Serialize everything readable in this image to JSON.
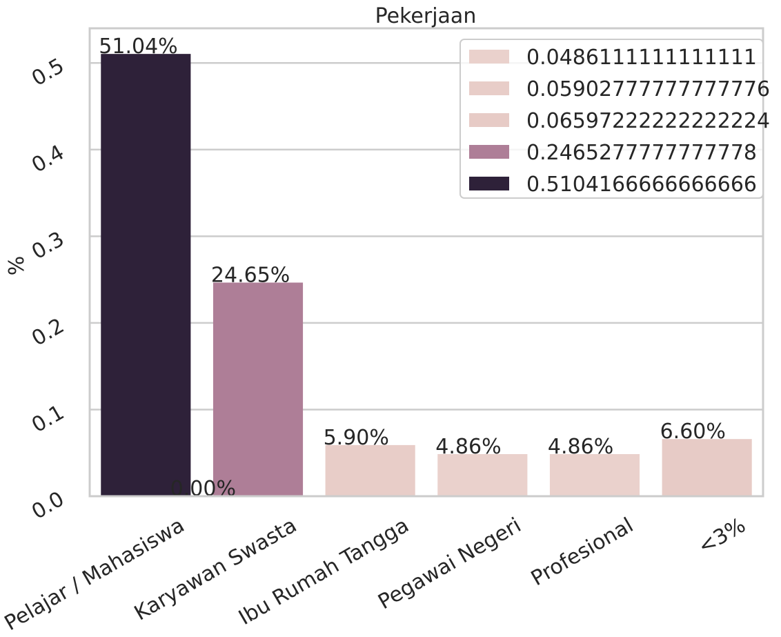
{
  "chart_data": {
    "type": "bar",
    "title": "Pekerjaan",
    "xlabel": "",
    "ylabel": "%",
    "ylim": [
      0,
      0.54
    ],
    "yticks": [
      0.0,
      0.1,
      0.2,
      0.3,
      0.4,
      0.5
    ],
    "ytick_labels": [
      "0.0",
      "0.1",
      "0.2",
      "0.3",
      "0.4",
      "0.5"
    ],
    "categories": [
      "Pelajar / Mahasiswa",
      "Karyawan Swasta",
      "Ibu Rumah Tangga",
      "Pegawai Negeri",
      "Profesional",
      "<3%"
    ],
    "values": [
      0.5104166666666666,
      0.2465277777777778,
      0.05902777777777776,
      0.04861111111111111,
      0.04861111111111111,
      0.06597222222222224
    ],
    "data_labels": [
      "51.04%",
      "24.65%",
      "5.90%",
      "4.86%",
      "4.86%",
      "6.60%"
    ],
    "extra_label": "0.00%",
    "grid": true,
    "legend_position": "top-right",
    "legend": [
      {
        "label": "0.0486111111111111",
        "color": "#ead1cc"
      },
      {
        "label": "0.05902777777777776",
        "color": "#e8cdc8"
      },
      {
        "label": "0.06597222222222224",
        "color": "#e7cbc6"
      },
      {
        "label": "0.2465277777777778",
        "color": "#ae7e97"
      },
      {
        "label": "0.5104166666666666",
        "color": "#2e2139"
      }
    ],
    "bar_colors": [
      "#2e2139",
      "#ae7e97",
      "#e8cdc8",
      "#ead1cc",
      "#ead1cc",
      "#e7cbc6"
    ]
  }
}
